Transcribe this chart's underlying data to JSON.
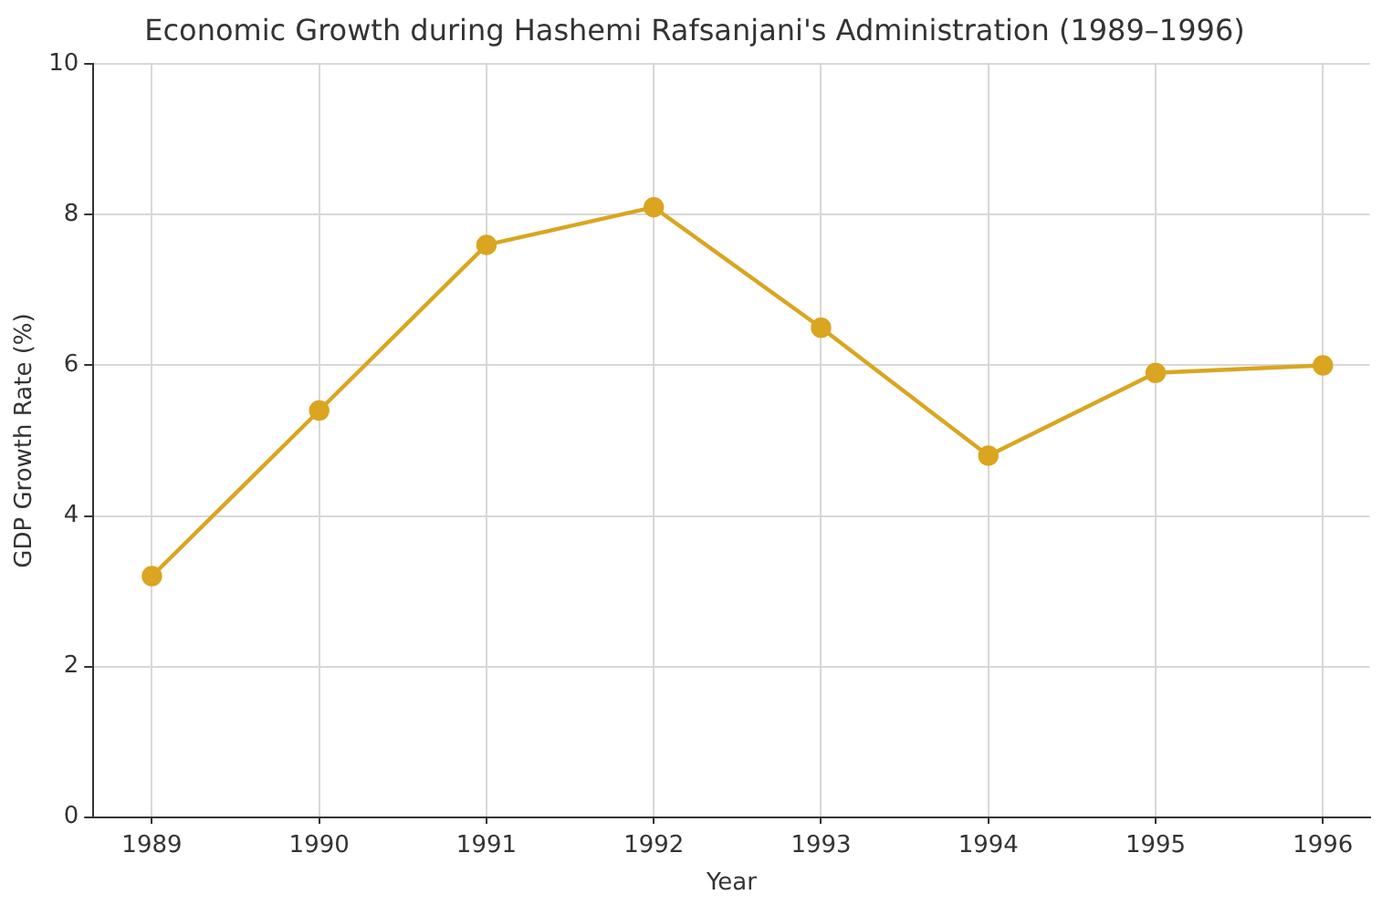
{
  "chart_data": {
    "type": "line",
    "title": "Economic Growth during Hashemi Rafsanjani's Administration (1989–1996)",
    "xlabel": "Year",
    "ylabel": "GDP Growth Rate (%)",
    "x": [
      1989,
      1990,
      1991,
      1992,
      1993,
      1994,
      1995,
      1996
    ],
    "series": [
      {
        "color": "#daa520",
        "values": [
          3.2,
          5.4,
          7.6,
          8.1,
          6.5,
          4.8,
          5.9,
          6.0
        ]
      }
    ],
    "xlim": [
      1988.65,
      1996.28
    ],
    "xticks": [
      1989,
      1990,
      1991,
      1992,
      1993,
      1994,
      1995,
      1996
    ],
    "ylim": [
      0,
      10
    ],
    "yticks": [
      0,
      2,
      4,
      6,
      8,
      10
    ],
    "grid": true,
    "legend": false,
    "marker": "circle",
    "line_style": "solid"
  }
}
